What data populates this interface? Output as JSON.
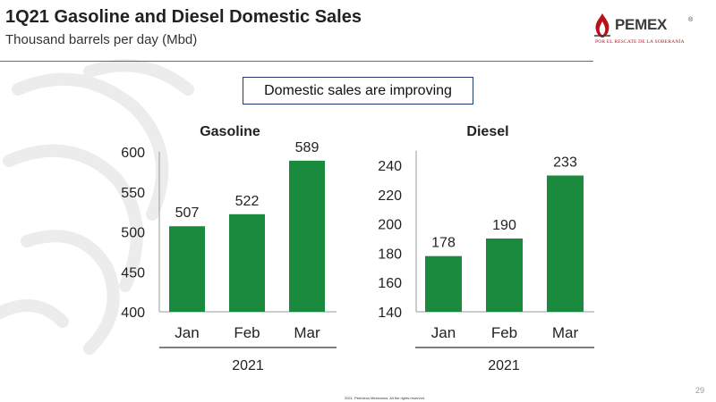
{
  "header": {
    "title": "1Q21 Gasoline and Diesel Domestic Sales",
    "subtitle": "Thousand barrels per day (Mbd)"
  },
  "logo": {
    "name": "PEMEX",
    "registered": "®",
    "tagline": "POR EL RESCATE DE LA SOBERANÍA"
  },
  "callout": "Domestic sales are improving",
  "colors": {
    "bar": "#1a8a3e",
    "accent_red": "#b5121b",
    "axis": "#9a9a9a"
  },
  "footer": "2021. Petróleos Mexicanos.  All the rights reserved.",
  "page_number": "29",
  "chart_data": [
    {
      "type": "bar",
      "title": "Gasoline",
      "categories": [
        "Jan",
        "Feb",
        "Mar"
      ],
      "values": [
        507,
        522,
        589
      ],
      "group_label": "2021",
      "ylim": [
        400,
        600
      ],
      "yticks": [
        400,
        450,
        500,
        550,
        600
      ],
      "grid": false
    },
    {
      "type": "bar",
      "title": "Diesel",
      "categories": [
        "Jan",
        "Feb",
        "Mar"
      ],
      "values": [
        178,
        190,
        233
      ],
      "group_label": "2021",
      "ylim": [
        140,
        250
      ],
      "yticks": [
        140,
        160,
        180,
        200,
        220,
        240
      ],
      "grid": false
    }
  ]
}
